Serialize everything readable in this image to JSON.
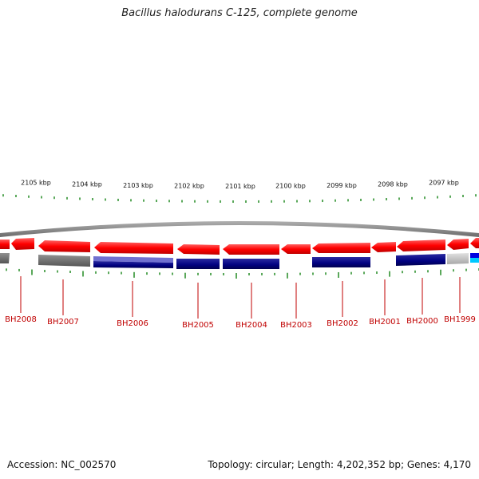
{
  "title": "Bacillus halodurans C-125, complete genome",
  "footer": {
    "accession": "Accession: NC_002570",
    "info": "Topology: circular; Length: 4,202,352 bp; Genes: 4,170"
  },
  "colors": {
    "forward": "#ff0000",
    "reverse": "#000080",
    "reverse_light": "#5050c0",
    "gray": "#707070",
    "light_gray": "#c0c0c0",
    "cyan": "#00c0ff",
    "tick": "#228b22",
    "label": "#c00000",
    "ring": "#888888"
  },
  "scale": {
    "labels": [
      "2105 kbp",
      "2104 kbp",
      "2103 kbp",
      "2102 kbp",
      "2101 kbp",
      "2100 kbp",
      "2099 kbp",
      "2098 kbp",
      "2097 kbp"
    ]
  },
  "genes": [
    {
      "name": "BH2008"
    },
    {
      "name": "BH2007"
    },
    {
      "name": "BH2006"
    },
    {
      "name": "BH2005"
    },
    {
      "name": "BH2004"
    },
    {
      "name": "BH2003"
    },
    {
      "name": "BH2002"
    },
    {
      "name": "BH2001"
    },
    {
      "name": "BH2000"
    },
    {
      "name": "BH1999"
    }
  ]
}
